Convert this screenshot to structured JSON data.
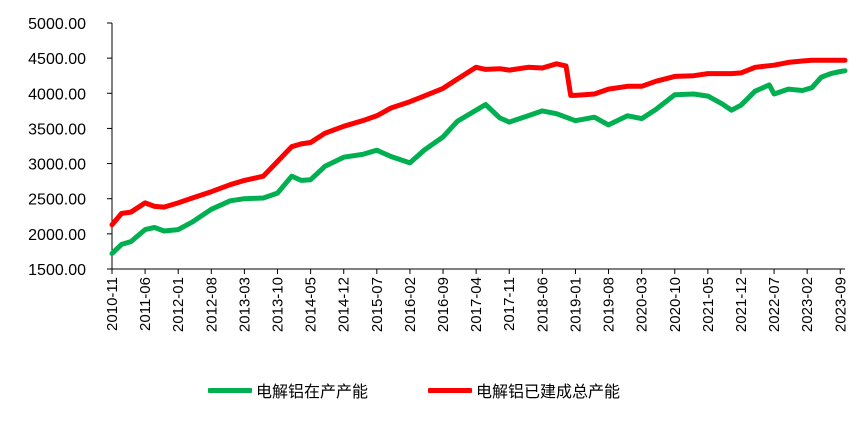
{
  "chart_data": {
    "type": "line",
    "title": "",
    "xlabel": "",
    "ylabel": "",
    "ylim": [
      1500,
      5000
    ],
    "yticks": [
      "1500.00",
      "2000.00",
      "2500.00",
      "3000.00",
      "3500.00",
      "4000.00",
      "4500.00",
      "5000.00"
    ],
    "xticks": [
      "2010-11",
      "2011-06",
      "2012-01",
      "2012-08",
      "2013-03",
      "2013-10",
      "2014-05",
      "2014-12",
      "2015-07",
      "2016-02",
      "2016-09",
      "2017-04",
      "2017-11",
      "2018-06",
      "2019-01",
      "2019-08",
      "2020-03",
      "2020-10",
      "2021-05",
      "2021-12",
      "2022-07",
      "2023-02",
      "2023-09"
    ],
    "grid": false,
    "legend_position": "bottom",
    "series": [
      {
        "name": "电解铝在产产能",
        "color": "#00B050",
        "points": [
          [
            "2010-11",
            1720
          ],
          [
            "2011-01",
            1850
          ],
          [
            "2011-03",
            1890
          ],
          [
            "2011-06",
            2060
          ],
          [
            "2011-08",
            2090
          ],
          [
            "2011-10",
            2040
          ],
          [
            "2012-01",
            2060
          ],
          [
            "2012-04",
            2170
          ],
          [
            "2012-08",
            2350
          ],
          [
            "2012-12",
            2470
          ],
          [
            "2013-03",
            2500
          ],
          [
            "2013-07",
            2510
          ],
          [
            "2013-10",
            2580
          ],
          [
            "2014-01",
            2820
          ],
          [
            "2014-03",
            2760
          ],
          [
            "2014-05",
            2770
          ],
          [
            "2014-08",
            2960
          ],
          [
            "2014-12",
            3090
          ],
          [
            "2015-04",
            3130
          ],
          [
            "2015-07",
            3190
          ],
          [
            "2015-10",
            3100
          ],
          [
            "2016-02",
            3010
          ],
          [
            "2016-05",
            3190
          ],
          [
            "2016-09",
            3380
          ],
          [
            "2016-12",
            3600
          ],
          [
            "2017-04",
            3760
          ],
          [
            "2017-06",
            3840
          ],
          [
            "2017-09",
            3650
          ],
          [
            "2017-11",
            3590
          ],
          [
            "2018-03",
            3680
          ],
          [
            "2018-06",
            3750
          ],
          [
            "2018-09",
            3710
          ],
          [
            "2019-01",
            3610
          ],
          [
            "2019-05",
            3660
          ],
          [
            "2019-08",
            3550
          ],
          [
            "2019-12",
            3680
          ],
          [
            "2020-03",
            3640
          ],
          [
            "2020-06",
            3770
          ],
          [
            "2020-10",
            3980
          ],
          [
            "2021-02",
            3990
          ],
          [
            "2021-05",
            3960
          ],
          [
            "2021-08",
            3850
          ],
          [
            "2021-10",
            3760
          ],
          [
            "2021-12",
            3830
          ],
          [
            "2022-03",
            4030
          ],
          [
            "2022-06",
            4120
          ],
          [
            "2022-07",
            3990
          ],
          [
            "2022-10",
            4060
          ],
          [
            "2023-01",
            4040
          ],
          [
            "2023-03",
            4080
          ],
          [
            "2023-05",
            4230
          ],
          [
            "2023-07",
            4280
          ],
          [
            "2023-09",
            4310
          ],
          [
            "2023-10",
            4320
          ]
        ]
      },
      {
        "name": "电解铝已建成总产能",
        "color": "#FF0000",
        "points": [
          [
            "2010-11",
            2130
          ],
          [
            "2011-01",
            2290
          ],
          [
            "2011-03",
            2310
          ],
          [
            "2011-06",
            2440
          ],
          [
            "2011-08",
            2390
          ],
          [
            "2011-10",
            2380
          ],
          [
            "2012-01",
            2440
          ],
          [
            "2012-04",
            2510
          ],
          [
            "2012-08",
            2600
          ],
          [
            "2012-12",
            2700
          ],
          [
            "2013-03",
            2760
          ],
          [
            "2013-07",
            2820
          ],
          [
            "2013-10",
            3030
          ],
          [
            "2014-01",
            3240
          ],
          [
            "2014-03",
            3280
          ],
          [
            "2014-05",
            3300
          ],
          [
            "2014-08",
            3430
          ],
          [
            "2014-12",
            3530
          ],
          [
            "2015-04",
            3610
          ],
          [
            "2015-07",
            3680
          ],
          [
            "2015-10",
            3790
          ],
          [
            "2016-02",
            3880
          ],
          [
            "2016-05",
            3960
          ],
          [
            "2016-09",
            4070
          ],
          [
            "2016-12",
            4200
          ],
          [
            "2017-04",
            4370
          ],
          [
            "2017-06",
            4340
          ],
          [
            "2017-09",
            4350
          ],
          [
            "2017-11",
            4330
          ],
          [
            "2018-03",
            4370
          ],
          [
            "2018-06",
            4360
          ],
          [
            "2018-09",
            4420
          ],
          [
            "2018-11",
            4390
          ],
          [
            "2018-12",
            3970
          ],
          [
            "2019-01",
            3970
          ],
          [
            "2019-05",
            3990
          ],
          [
            "2019-08",
            4060
          ],
          [
            "2019-12",
            4100
          ],
          [
            "2020-03",
            4100
          ],
          [
            "2020-06",
            4170
          ],
          [
            "2020-10",
            4240
          ],
          [
            "2021-02",
            4250
          ],
          [
            "2021-05",
            4280
          ],
          [
            "2021-08",
            4280
          ],
          [
            "2021-10",
            4280
          ],
          [
            "2021-12",
            4290
          ],
          [
            "2022-03",
            4370
          ],
          [
            "2022-07",
            4400
          ],
          [
            "2022-10",
            4440
          ],
          [
            "2023-01",
            4460
          ],
          [
            "2023-03",
            4470
          ],
          [
            "2023-05",
            4470
          ],
          [
            "2023-07",
            4470
          ],
          [
            "2023-09",
            4470
          ],
          [
            "2023-10",
            4470
          ]
        ]
      }
    ]
  }
}
